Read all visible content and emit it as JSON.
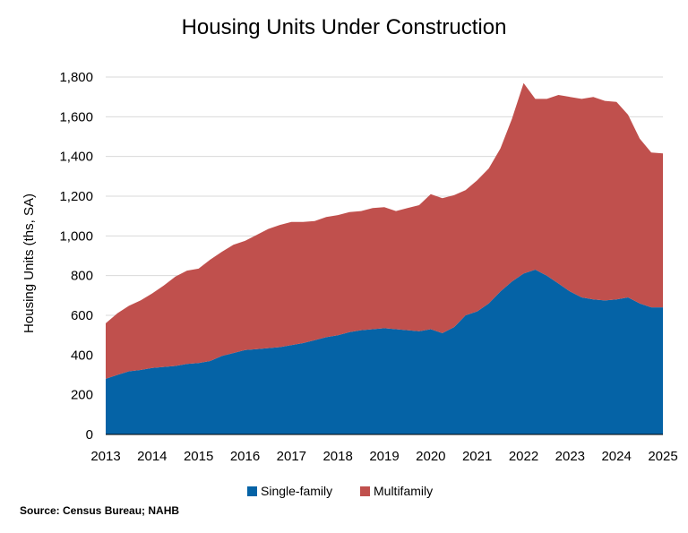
{
  "chart_data": {
    "type": "area",
    "stacked": true,
    "title": "Housing Units Under Construction",
    "ylabel": "Housing Units (ths, SA)",
    "xlabel": "",
    "xlim": [
      2013,
      2025
    ],
    "ylim": [
      0,
      1800
    ],
    "x_ticks": [
      "2013",
      "2014",
      "2015",
      "2016",
      "2017",
      "2018",
      "2019",
      "2020",
      "2021",
      "2022",
      "2023",
      "2024",
      "2025"
    ],
    "y_ticks": [
      "0",
      "200",
      "400",
      "600",
      "800",
      "1,000",
      "1,200",
      "1,400",
      "1,600",
      "1,800"
    ],
    "grid": true,
    "legend_position": "bottom",
    "source": "Source: Census Bureau; NAHB",
    "x": [
      2013.0,
      2013.25,
      2013.5,
      2013.75,
      2014.0,
      2014.25,
      2014.5,
      2014.75,
      2015.0,
      2015.25,
      2015.5,
      2015.75,
      2016.0,
      2016.25,
      2016.5,
      2016.75,
      2017.0,
      2017.25,
      2017.5,
      2017.75,
      2018.0,
      2018.25,
      2018.5,
      2018.75,
      2019.0,
      2019.25,
      2019.5,
      2019.75,
      2020.0,
      2020.25,
      2020.5,
      2020.75,
      2021.0,
      2021.25,
      2021.5,
      2021.75,
      2022.0,
      2022.25,
      2022.5,
      2022.75,
      2023.0,
      2023.25,
      2023.5,
      2023.75,
      2024.0,
      2024.25,
      2024.5,
      2024.75,
      2025.0
    ],
    "series": [
      {
        "name": "Single-family",
        "color": "#0563a6",
        "values": [
          280,
          300,
          318,
          325,
          335,
          340,
          345,
          355,
          360,
          370,
          395,
          410,
          425,
          430,
          435,
          440,
          450,
          460,
          475,
          490,
          500,
          515,
          525,
          530,
          535,
          530,
          525,
          520,
          530,
          510,
          540,
          600,
          620,
          660,
          720,
          770,
          810,
          830,
          800,
          760,
          720,
          690,
          680,
          675,
          680,
          690,
          660,
          640,
          640
        ]
      },
      {
        "name": "Multifamily",
        "color": "#c0504d",
        "values": [
          280,
          310,
          330,
          350,
          375,
          410,
          450,
          470,
          475,
          510,
          525,
          545,
          550,
          575,
          600,
          615,
          620,
          610,
          600,
          605,
          605,
          605,
          600,
          610,
          610,
          595,
          615,
          635,
          680,
          680,
          665,
          630,
          660,
          680,
          720,
          820,
          960,
          860,
          890,
          950,
          980,
          1000,
          1020,
          1005,
          995,
          920,
          830,
          780,
          775
        ]
      }
    ]
  }
}
